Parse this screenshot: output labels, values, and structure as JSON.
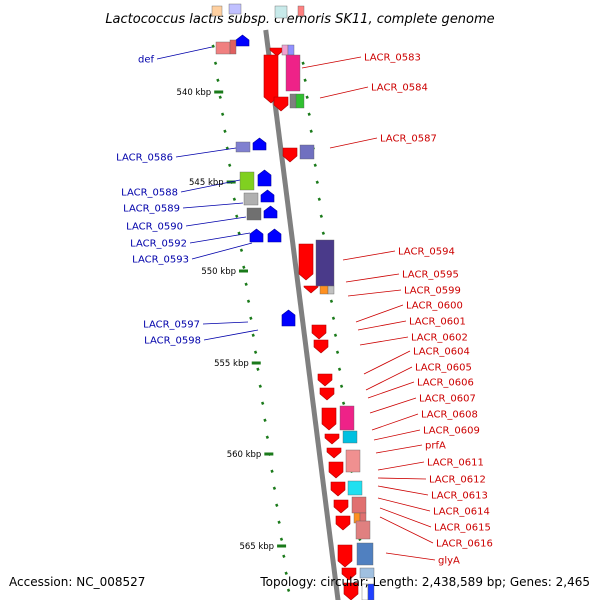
{
  "title": "Lactococcus lactis subsp. cremoris SK11, complete genome",
  "footer": {
    "accession": "Accession: NC_008527",
    "topology": "Topology: circular; Length: 2,438,589 bp; Genes: 2,465"
  },
  "kbp_labels": [
    "540 kbp",
    "545 kbp",
    "550 kbp",
    "555 kbp",
    "560 kbp",
    "565 kbp"
  ],
  "left_genes": [
    "def",
    "LACR_0586",
    "LACR_0588",
    "LACR_0589",
    "LACR_0590",
    "LACR_0592",
    "LACR_0593",
    "LACR_0597",
    "LACR_0598"
  ],
  "right_genes": [
    "LACR_0583",
    "LACR_0584",
    "LACR_0587",
    "LACR_0594",
    "LACR_0595",
    "LACR_0599",
    "LACR_0600",
    "LACR_0601",
    "LACR_0602",
    "LACR_0604",
    "LACR_0605",
    "LACR_0606",
    "LACR_0607",
    "LACR_0608",
    "LACR_0609",
    "prfA",
    "LACR_0611",
    "LACR_0612",
    "LACR_0613",
    "LACR_0614",
    "LACR_0615",
    "LACR_0616",
    "glyA"
  ],
  "colors": {
    "backbone": "#808080",
    "tick": "#1a7a1a",
    "forward_gene": "#ff0000",
    "reverse_gene": "#0000ff",
    "forward_label": "#cc0000",
    "reverse_label": "#0000aa"
  }
}
